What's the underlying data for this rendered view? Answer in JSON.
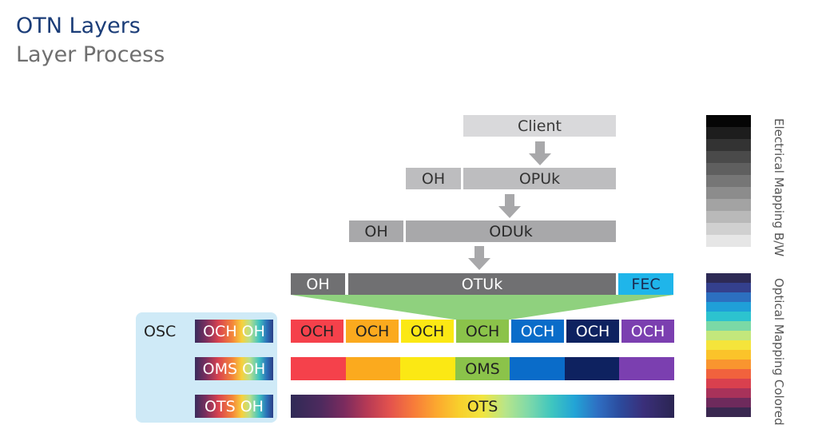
{
  "header": {
    "title": "OTN Layers",
    "subtitle": "Layer Process"
  },
  "stack": {
    "client": "Client",
    "opu": {
      "oh": "OH",
      "label": "OPUk"
    },
    "odu": {
      "oh": "OH",
      "label": "ODUk"
    },
    "otu": {
      "oh": "OH",
      "label": "OTUk",
      "fec": "FEC"
    }
  },
  "och_row": {
    "label": "OCH",
    "colors": [
      "#f5414b",
      "#fbaa1e",
      "#fbe814",
      "#8bc34a",
      "#0a6cc9",
      "#0e2260",
      "#7b3fb0"
    ],
    "text_colors": [
      "#222222",
      "#222222",
      "#222222",
      "#222222",
      "#ffffff",
      "#ffffff",
      "#ffffff"
    ]
  },
  "oms_row": {
    "label": "OMS",
    "colors": [
      "#f5414b",
      "#fbaa1e",
      "#fbe814",
      "#8bc34a",
      "#0a6cc9",
      "#0e2260",
      "#7b3fb0"
    ]
  },
  "ots_row": {
    "label": "OTS"
  },
  "osc": {
    "label": "OSC",
    "items": [
      "OCH OH",
      "OMS OH",
      "OTS OH"
    ]
  },
  "legend": {
    "electrical": "Electrical Mapping B/W",
    "optical": "Optical Mapping Colored",
    "bw_colors": [
      "#050505",
      "#1d1d1d",
      "#333333",
      "#4a4a4a",
      "#5f5f5f",
      "#767676",
      "#8c8c8c",
      "#a3a3a3",
      "#b9b9b9",
      "#d0d0d0",
      "#e6e6e6"
    ],
    "color_colors": [
      "#2d2a55",
      "#34408d",
      "#2c6fc0",
      "#1f9fd8",
      "#2cc3cf",
      "#7bd9a6",
      "#c3e77c",
      "#f5e43b",
      "#fbc32a",
      "#f9952f",
      "#f1623d",
      "#d9404e",
      "#a8325a",
      "#6e2a5c",
      "#3a2850"
    ]
  }
}
